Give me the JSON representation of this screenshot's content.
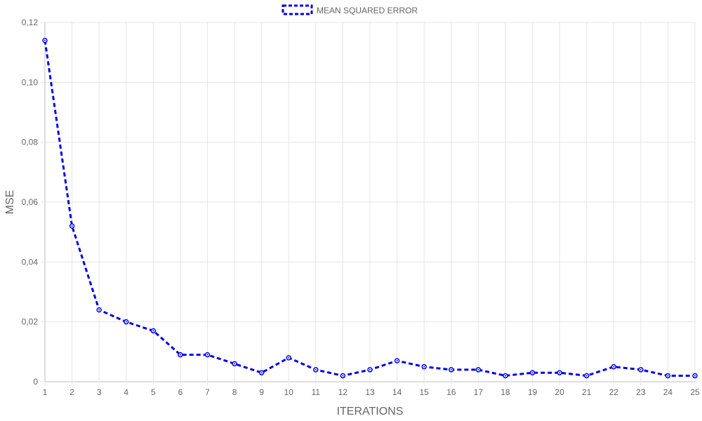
{
  "chart_data": {
    "type": "line",
    "legend_position": "top",
    "grid": true,
    "xlabel": "ITERATIONS",
    "ylabel": "MSE",
    "ylim": [
      0,
      0.12
    ],
    "y_ticks": [
      {
        "value": 0,
        "label": "0"
      },
      {
        "value": 0.02,
        "label": "0,02"
      },
      {
        "value": 0.04,
        "label": "0,04"
      },
      {
        "value": 0.06,
        "label": "0,06"
      },
      {
        "value": 0.08,
        "label": "0,08"
      },
      {
        "value": 0.1,
        "label": "0,10"
      },
      {
        "value": 0.12,
        "label": "0,12"
      }
    ],
    "categories": [
      "1",
      "2",
      "3",
      "4",
      "5",
      "6",
      "7",
      "8",
      "9",
      "10",
      "11",
      "12",
      "13",
      "14",
      "15",
      "16",
      "17",
      "18",
      "19",
      "20",
      "21",
      "22",
      "23",
      "24",
      "25"
    ],
    "series": [
      {
        "name": "MEAN SQUARED ERROR",
        "color": "#0000e6",
        "line_style": "dashed",
        "values": [
          0.114,
          0.052,
          0.024,
          0.02,
          0.017,
          0.009,
          0.009,
          0.006,
          0.003,
          0.008,
          0.004,
          0.002,
          0.004,
          0.007,
          0.005,
          0.004,
          0.004,
          0.002,
          0.003,
          0.003,
          0.002,
          0.005,
          0.004,
          0.002,
          0.002
        ]
      }
    ]
  }
}
